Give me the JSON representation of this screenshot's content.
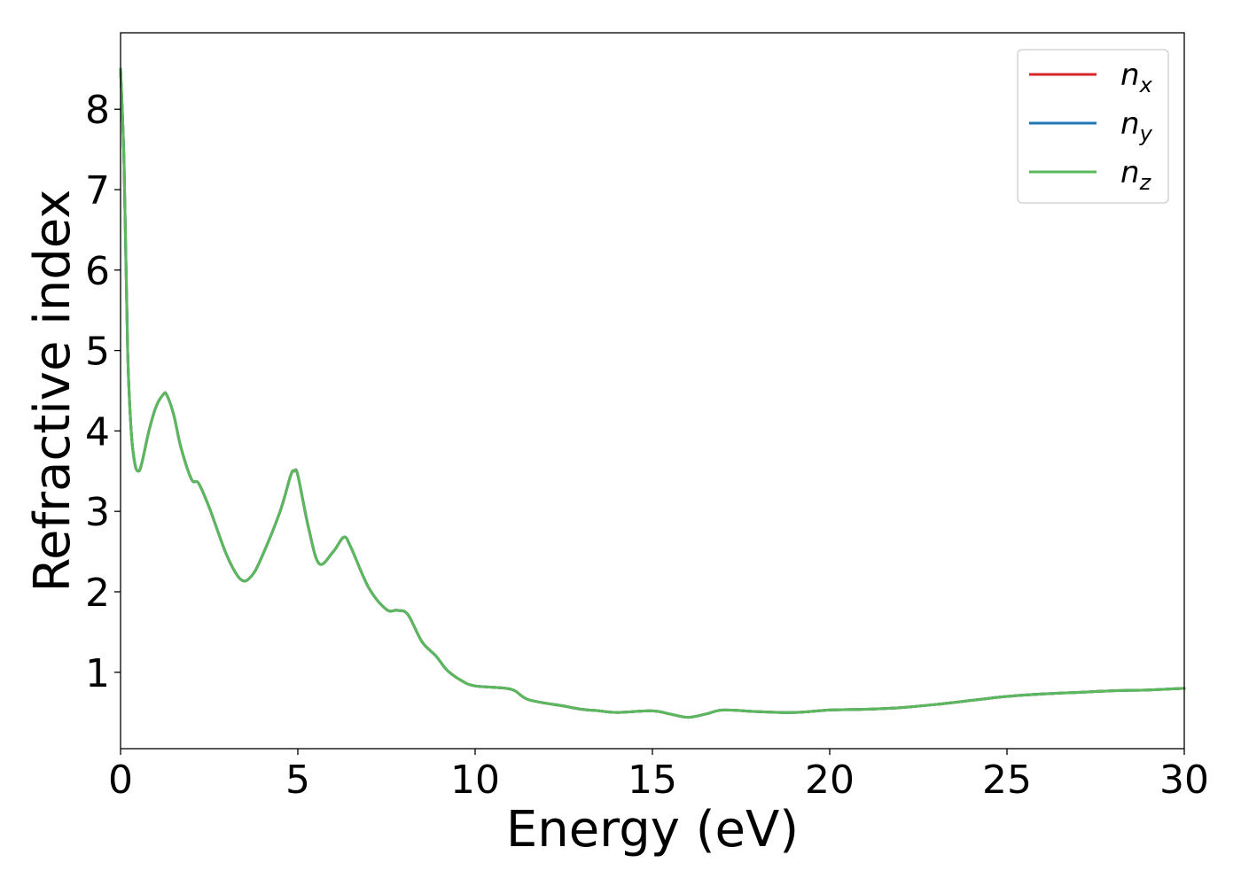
{
  "chart_data": {
    "type": "line",
    "title": "",
    "xlabel": "Energy (eV)",
    "ylabel": "Refractive index",
    "xlim": [
      0,
      30
    ],
    "ylim": [
      0.05,
      8.95
    ],
    "xticks": [
      0,
      5,
      10,
      15,
      20,
      25,
      30
    ],
    "yticks": [
      1,
      2,
      3,
      4,
      5,
      6,
      7,
      8
    ],
    "grid": false,
    "legend_position": "top-right",
    "x": [
      0,
      0.1,
      0.2,
      0.3,
      0.4,
      0.5,
      0.6,
      0.8,
      1.0,
      1.2,
      1.3,
      1.5,
      1.7,
      2.0,
      2.2,
      2.5,
      3.0,
      3.4,
      3.7,
      4.0,
      4.5,
      4.8,
      4.9,
      5.0,
      5.3,
      5.6,
      6.0,
      6.3,
      6.5,
      7.0,
      7.5,
      7.8,
      8.1,
      8.5,
      8.9,
      9.2,
      9.6,
      10.0,
      11.0,
      11.5,
      12.5,
      13.0,
      13.5,
      14.0,
      15.0,
      15.5,
      16.0,
      16.5,
      17.0,
      18.0,
      19.0,
      20.0,
      21.0,
      22.0,
      23.0,
      24.0,
      25.0,
      26.0,
      27.0,
      28.0,
      29.0,
      30.0
    ],
    "series": [
      {
        "name": "n_x",
        "color": "#d62728",
        "values": [
          8.5,
          7.3,
          5.0,
          4.0,
          3.6,
          3.5,
          3.6,
          4.0,
          4.3,
          4.45,
          4.45,
          4.2,
          3.8,
          3.4,
          3.35,
          3.05,
          2.45,
          2.15,
          2.2,
          2.45,
          3.0,
          3.45,
          3.5,
          3.45,
          2.8,
          2.35,
          2.5,
          2.68,
          2.55,
          2.05,
          1.78,
          1.77,
          1.72,
          1.38,
          1.2,
          1.03,
          0.9,
          0.83,
          0.79,
          0.66,
          0.58,
          0.54,
          0.52,
          0.5,
          0.52,
          0.48,
          0.44,
          0.48,
          0.53,
          0.51,
          0.5,
          0.53,
          0.54,
          0.56,
          0.6,
          0.65,
          0.7,
          0.73,
          0.75,
          0.77,
          0.78,
          0.8
        ]
      },
      {
        "name": "n_y",
        "color": "#1f77b4",
        "values": [
          8.5,
          7.3,
          5.0,
          4.0,
          3.6,
          3.5,
          3.6,
          4.0,
          4.3,
          4.45,
          4.45,
          4.2,
          3.8,
          3.4,
          3.35,
          3.05,
          2.45,
          2.15,
          2.2,
          2.45,
          3.0,
          3.45,
          3.5,
          3.45,
          2.8,
          2.35,
          2.5,
          2.68,
          2.55,
          2.05,
          1.78,
          1.77,
          1.72,
          1.38,
          1.2,
          1.03,
          0.9,
          0.83,
          0.79,
          0.66,
          0.58,
          0.54,
          0.52,
          0.5,
          0.52,
          0.48,
          0.44,
          0.48,
          0.53,
          0.51,
          0.5,
          0.53,
          0.54,
          0.56,
          0.6,
          0.65,
          0.7,
          0.73,
          0.75,
          0.77,
          0.78,
          0.8
        ]
      },
      {
        "name": "n_z",
        "color": "#5cb85c",
        "values": [
          8.5,
          7.3,
          5.0,
          4.0,
          3.6,
          3.5,
          3.6,
          4.0,
          4.3,
          4.45,
          4.45,
          4.2,
          3.8,
          3.4,
          3.35,
          3.05,
          2.45,
          2.15,
          2.2,
          2.45,
          3.0,
          3.45,
          3.5,
          3.45,
          2.8,
          2.35,
          2.5,
          2.68,
          2.55,
          2.05,
          1.78,
          1.77,
          1.72,
          1.38,
          1.2,
          1.03,
          0.9,
          0.83,
          0.79,
          0.66,
          0.58,
          0.54,
          0.52,
          0.5,
          0.52,
          0.48,
          0.44,
          0.48,
          0.53,
          0.51,
          0.5,
          0.53,
          0.54,
          0.56,
          0.6,
          0.65,
          0.7,
          0.73,
          0.75,
          0.77,
          0.78,
          0.8
        ]
      }
    ],
    "legend": [
      {
        "base": "n",
        "sub": "x",
        "color": "#d62728"
      },
      {
        "base": "n",
        "sub": "y",
        "color": "#1f77b4"
      },
      {
        "base": "n",
        "sub": "z",
        "color": "#5cb85c"
      }
    ]
  }
}
